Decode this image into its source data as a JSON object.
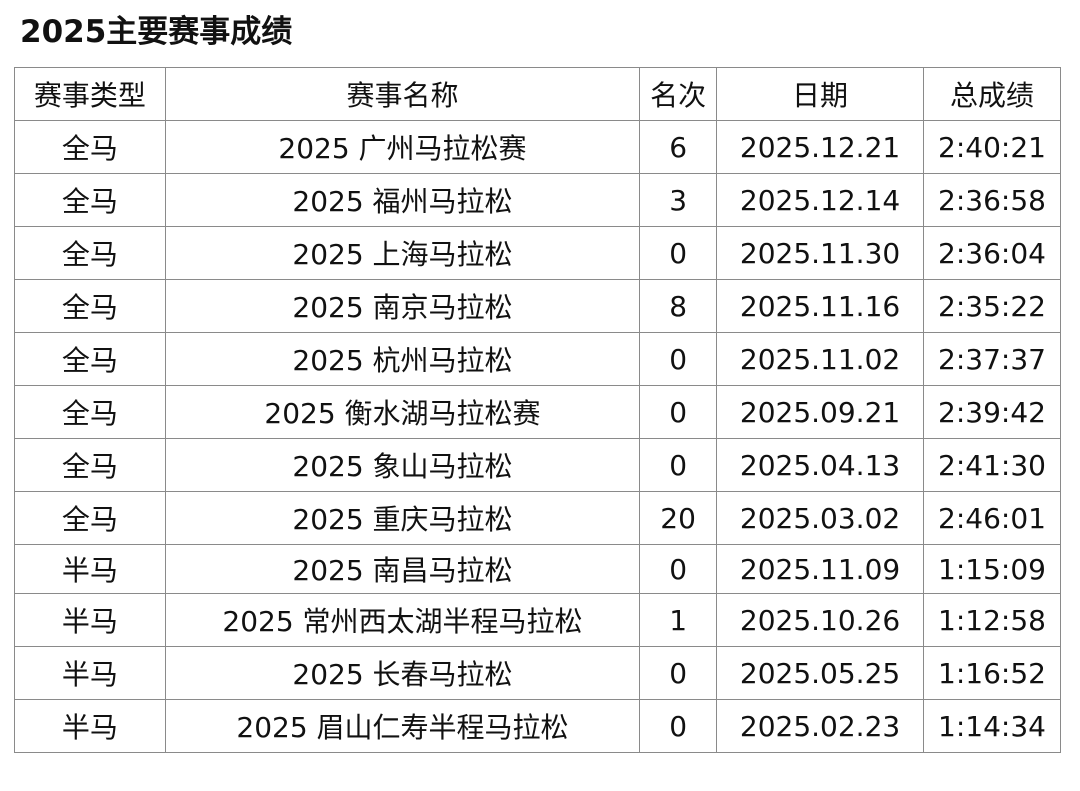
{
  "title": "2025主要赛事成绩",
  "headers": [
    "赛事类型",
    "赛事名称",
    "名次",
    "日期",
    "总成绩"
  ],
  "rows": [
    [
      "全马",
      "2025 广州马拉松赛",
      "6",
      "2025.12.21",
      "2:40:21"
    ],
    [
      "全马",
      "2025 福州马拉松",
      "3",
      "2025.12.14",
      "2:36:58"
    ],
    [
      "全马",
      "2025 上海马拉松",
      "0",
      "2025.11.30",
      "2:36:04"
    ],
    [
      "全马",
      "2025 南京马拉松",
      "8",
      "2025.11.16",
      "2:35:22"
    ],
    [
      "全马",
      "2025 杭州马拉松",
      "0",
      "2025.11.02",
      "2:37:37"
    ],
    [
      "全马",
      "2025 衡水湖马拉松赛",
      "0",
      "2025.09.21",
      "2:39:42"
    ],
    [
      "全马",
      "2025 象山马拉松",
      "0",
      "2025.04.13",
      "2:41:30"
    ],
    [
      "全马",
      "2025 重庆马拉松",
      "20",
      "2025.03.02",
      "2:46:01"
    ],
    [
      "半马",
      "2025 南昌马拉松",
      "0",
      "2025.11.09",
      "1:15:09"
    ],
    [
      "半马",
      "2025 常州西太湖半程马拉松",
      "1",
      "2025.10.26",
      "1:12:58"
    ],
    [
      "半马",
      "2025 长春马拉松",
      "0",
      "2025.05.25",
      "1:16:52"
    ],
    [
      "半马",
      "2025 眉山仁寿半程马拉松",
      "0",
      "2025.02.23",
      "1:14:34"
    ]
  ]
}
